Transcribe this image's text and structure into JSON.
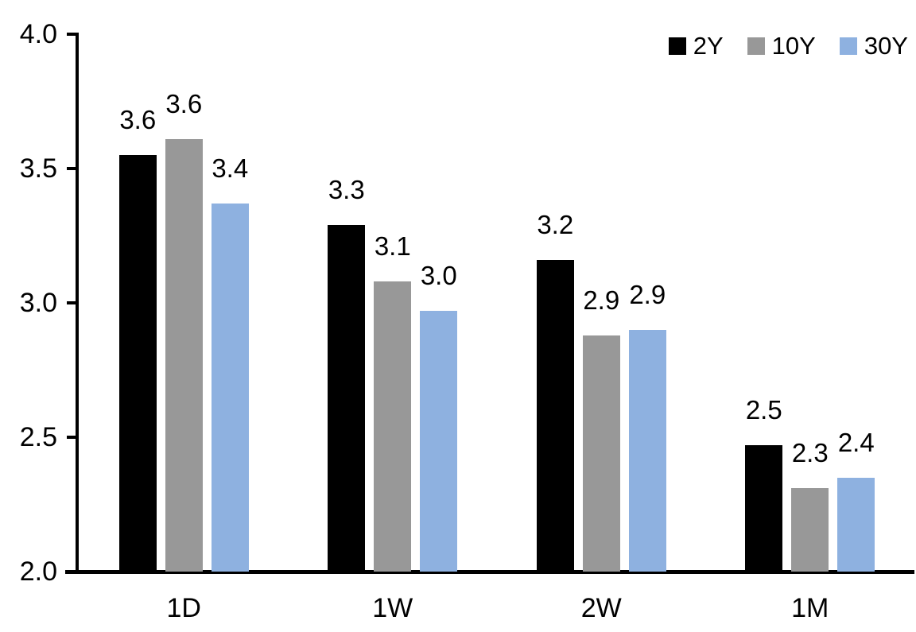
{
  "chart_data": {
    "type": "bar",
    "title": "",
    "xlabel": "",
    "ylabel": "",
    "categories": [
      "1D",
      "1W",
      "2W",
      "1M"
    ],
    "series": [
      {
        "name": "2Y",
        "color": "#000000",
        "values": [
          3.55,
          3.29,
          3.16,
          2.47
        ],
        "labels": [
          "3.6",
          "3.3",
          "3.2",
          "2.5"
        ]
      },
      {
        "name": "10Y",
        "color": "#989898",
        "values": [
          3.61,
          3.08,
          2.88,
          2.31
        ],
        "labels": [
          "3.6",
          "3.1",
          "2.9",
          "2.3"
        ]
      },
      {
        "name": "30Y",
        "color": "#8EB1E0",
        "values": [
          3.37,
          2.97,
          2.9,
          2.35
        ],
        "labels": [
          "3.4",
          "3.0",
          "2.9",
          "2.4"
        ]
      }
    ],
    "ylim": [
      2.0,
      4.0
    ],
    "yticks": [
      "4.0",
      "3.5",
      "3.0",
      "2.5",
      "2.0"
    ],
    "grid": false,
    "legend_position": "top-right",
    "axis_color": "#000000",
    "background_color": "#ffffff"
  }
}
